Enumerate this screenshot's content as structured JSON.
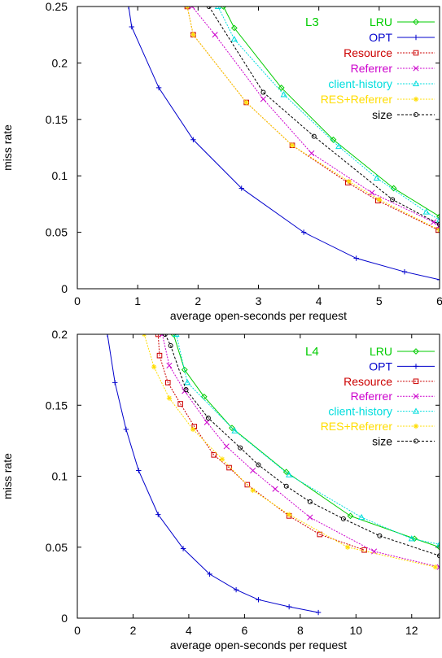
{
  "chart_data": [
    {
      "type": "line",
      "title": "L3",
      "title_color": "#00cc00",
      "xlabel": "average open-seconds per request",
      "ylabel": "miss rate",
      "xlim": [
        0,
        6
      ],
      "ylim": [
        0,
        0.25
      ],
      "xticks": [
        0,
        1,
        2,
        3,
        4,
        5,
        6
      ],
      "xtick_labels": [
        "0",
        "1",
        "2",
        "3",
        "4",
        "5",
        "6"
      ],
      "yticks": [
        0,
        0.05,
        0.1,
        0.15,
        0.2,
        0.25
      ],
      "ytick_labels": [
        "0",
        "0.05",
        "0.1",
        "0.15",
        "0.2",
        "0.25"
      ],
      "legend_position": "top-right",
      "series": [
        {
          "name": "LRU",
          "color": "#00cc00",
          "marker": "diamond",
          "x": [
            2.42,
            2.6,
            3.38,
            4.24,
            5.24,
            6.0
          ],
          "y": [
            0.25,
            0.231,
            0.178,
            0.132,
            0.089,
            0.064
          ]
        },
        {
          "name": "OPT",
          "color": "#0000cc",
          "marker": "plus",
          "x": [
            0.85,
            0.9,
            1.35,
            1.92,
            2.72,
            3.75,
            4.62,
            5.42,
            6.0
          ],
          "y": [
            0.25,
            0.232,
            0.178,
            0.132,
            0.089,
            0.05,
            0.027,
            0.015,
            0.008
          ]
        },
        {
          "name": "Resource",
          "color": "#cc0000",
          "marker": "square",
          "x": [
            1.82,
            1.92,
            2.8,
            3.56,
            4.48,
            4.98,
            5.98
          ],
          "y": [
            0.25,
            0.225,
            0.165,
            0.127,
            0.094,
            0.078,
            0.052
          ]
        },
        {
          "name": "Referrer",
          "color": "#cc00cc",
          "marker": "x",
          "x": [
            1.9,
            2.28,
            3.08,
            3.88,
            4.88,
            5.9,
            6.0
          ],
          "y": [
            0.25,
            0.225,
            0.168,
            0.12,
            0.085,
            0.059,
            0.056
          ]
        },
        {
          "name": "client-history",
          "color": "#00dddd",
          "marker": "triangle",
          "x": [
            2.33,
            2.6,
            3.42,
            4.33,
            4.96,
            5.78,
            6.0
          ],
          "y": [
            0.25,
            0.221,
            0.172,
            0.126,
            0.098,
            0.068,
            0.061
          ]
        },
        {
          "name": "RES+Referrer",
          "color": "#ffdd00",
          "marker": "star",
          "x": [
            1.82,
            1.92,
            2.8,
            3.56,
            4.5,
            5.0,
            6.0
          ],
          "y": [
            0.25,
            0.225,
            0.165,
            0.127,
            0.095,
            0.079,
            0.052
          ]
        },
        {
          "name": "size",
          "color": "#000000",
          "marker": "circle",
          "dash": true,
          "x": [
            2.18,
            3.08,
            3.92,
            5.22,
            6.0
          ],
          "y": [
            0.25,
            0.174,
            0.135,
            0.079,
            0.057
          ]
        }
      ]
    },
    {
      "type": "line",
      "title": "L4",
      "title_color": "#00cc00",
      "xlabel": "average open-seconds per request",
      "ylabel": "miss rate",
      "xlim": [
        0,
        13
      ],
      "ylim": [
        0,
        0.2
      ],
      "xticks": [
        0,
        2,
        4,
        6,
        8,
        10,
        12
      ],
      "xtick_labels": [
        "0",
        "2",
        "4",
        "6",
        "8",
        "10",
        "12"
      ],
      "yticks": [
        0,
        0.05,
        0.1,
        0.15,
        0.2
      ],
      "ytick_labels": [
        "0",
        "0.05",
        "0.1",
        "0.15",
        "0.2"
      ],
      "legend_position": "top-right",
      "series": [
        {
          "name": "LRU",
          "color": "#00cc00",
          "marker": "diamond",
          "x": [
            3.45,
            3.85,
            4.55,
            5.55,
            7.5,
            9.8,
            12.1,
            13.0
          ],
          "y": [
            0.2,
            0.175,
            0.156,
            0.134,
            0.103,
            0.072,
            0.056,
            0.05
          ]
        },
        {
          "name": "OPT",
          "color": "#0000cc",
          "marker": "plus",
          "x": [
            1.08,
            1.35,
            1.75,
            2.2,
            2.9,
            3.8,
            4.75,
            5.7,
            6.5,
            7.6,
            8.65
          ],
          "y": [
            0.2,
            0.166,
            0.133,
            0.104,
            0.073,
            0.049,
            0.031,
            0.02,
            0.013,
            0.008,
            0.004
          ]
        },
        {
          "name": "Resource",
          "color": "#cc0000",
          "marker": "square",
          "x": [
            2.9,
            2.95,
            3.25,
            3.7,
            4.2,
            4.9,
            5.45,
            6.1,
            7.6,
            8.7,
            10.3
          ],
          "y": [
            0.2,
            0.185,
            0.166,
            0.151,
            0.135,
            0.115,
            0.106,
            0.094,
            0.072,
            0.059,
            0.048
          ]
        },
        {
          "name": "Referrer",
          "color": "#cc00cc",
          "marker": "x",
          "x": [
            3.05,
            3.3,
            3.85,
            4.65,
            5.35,
            6.3,
            7.1,
            8.35,
            10.65,
            13.0
          ],
          "y": [
            0.2,
            0.178,
            0.16,
            0.138,
            0.121,
            0.104,
            0.091,
            0.071,
            0.047,
            0.036
          ]
        },
        {
          "name": "client-history",
          "color": "#00dddd",
          "marker": "triangle",
          "x": [
            3.55,
            3.95,
            5.65,
            7.6,
            10.2,
            12.0,
            13.0
          ],
          "y": [
            0.2,
            0.166,
            0.132,
            0.101,
            0.071,
            0.056,
            0.052
          ]
        },
        {
          "name": "RES+Referrer",
          "color": "#ffdd00",
          "marker": "star",
          "x": [
            2.4,
            2.75,
            3.3,
            4.15,
            5.2,
            6.3,
            7.6,
            9.7,
            12.85
          ],
          "y": [
            0.2,
            0.177,
            0.155,
            0.133,
            0.112,
            0.09,
            0.073,
            0.05,
            0.036
          ]
        },
        {
          "name": "size",
          "color": "#000000",
          "marker": "circle",
          "dash": true,
          "x": [
            3.15,
            3.35,
            3.9,
            4.7,
            5.85,
            6.5,
            7.5,
            8.35,
            9.55,
            10.85,
            13.0
          ],
          "y": [
            0.2,
            0.192,
            0.161,
            0.141,
            0.12,
            0.108,
            0.093,
            0.082,
            0.07,
            0.058,
            0.044
          ]
        }
      ]
    }
  ]
}
